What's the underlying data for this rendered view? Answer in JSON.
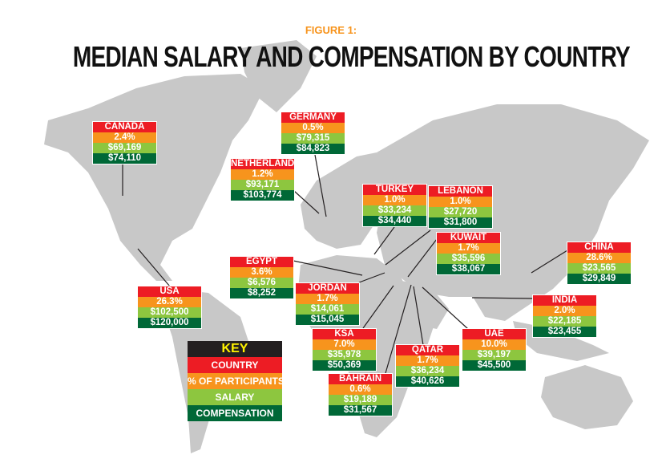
{
  "header": {
    "figure_label": "FIGURE 1:",
    "title": "MEDIAN SALARY AND COMPENSATION BY COUNTRY"
  },
  "key": {
    "title": "KEY",
    "rows": [
      "COUNTRY",
      "% OF PARTICIPANTS",
      "SALARY",
      "COMPENSATION"
    ]
  },
  "colors": {
    "country": "#ed1c24",
    "participants": "#f7941d",
    "salary": "#8dc63f",
    "compensation": "#006837",
    "land": "#c8c8c8"
  },
  "countries": [
    {
      "name": "CANADA",
      "pct": "2.4%",
      "salary": "$69,169",
      "comp": "$74,110"
    },
    {
      "name": "GERMANY",
      "pct": "0.5%",
      "salary": "$79,315",
      "comp": "$84,823"
    },
    {
      "name": "NETHERLANDS",
      "pct": "1.2%",
      "salary": "$93,171",
      "comp": "$103,774"
    },
    {
      "name": "TURKEY",
      "pct": "1.0%",
      "salary": "$33,234",
      "comp": "$34,440"
    },
    {
      "name": "LEBANON",
      "pct": "1.0%",
      "salary": "$27,720",
      "comp": "$31,800"
    },
    {
      "name": "KUWAIT",
      "pct": "1.7%",
      "salary": "$35,596",
      "comp": "$38,067"
    },
    {
      "name": "CHINA",
      "pct": "28.6%",
      "salary": "$23,565",
      "comp": "$29,849"
    },
    {
      "name": "EGYPT",
      "pct": "3.6%",
      "salary": "$6,576",
      "comp": "$8,252"
    },
    {
      "name": "JORDAN",
      "pct": "1.7%",
      "salary": "$14,061",
      "comp": "$15,045"
    },
    {
      "name": "USA",
      "pct": "26.3%",
      "salary": "$102,500",
      "comp": "$120,000"
    },
    {
      "name": "INDIA",
      "pct": "2.0%",
      "salary": "$22,185",
      "comp": "$23,455"
    },
    {
      "name": "KSA",
      "pct": "7.0%",
      "salary": "$35,978",
      "comp": "$50,369"
    },
    {
      "name": "UAE",
      "pct": "10.0%",
      "salary": "$39,197",
      "comp": "$45,500"
    },
    {
      "name": "QATAR",
      "pct": "1.7%",
      "salary": "$36,234",
      "comp": "$40,626"
    },
    {
      "name": "BAHRAIN",
      "pct": "0.6%",
      "salary": "$19,189",
      "comp": "$31,567"
    }
  ]
}
